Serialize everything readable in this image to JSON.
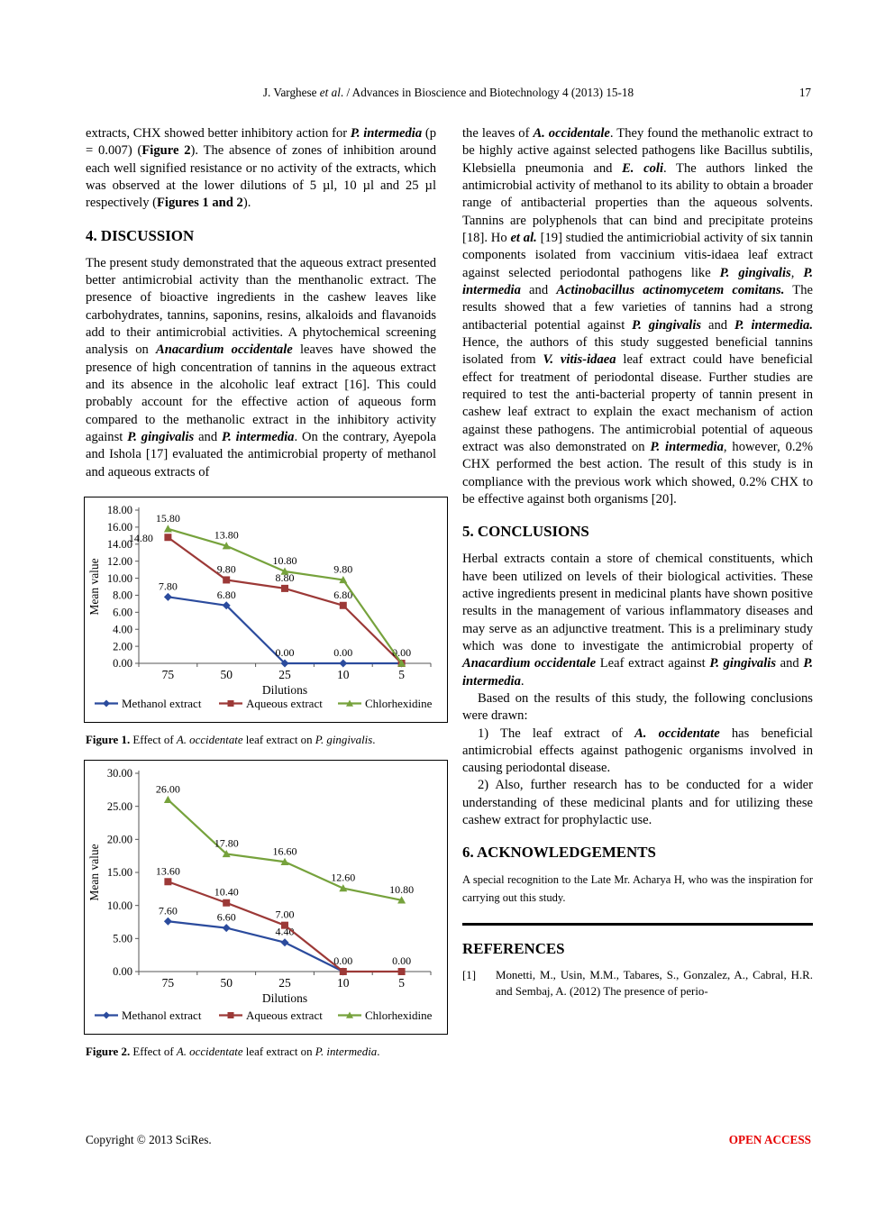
{
  "header": {
    "running_title": [
      {
        "t": "J. Varghese "
      },
      {
        "t": "et al",
        "i": true
      },
      {
        "t": ". / Advances in Bioscience and Biotechnology 4 (2013) 15-18"
      }
    ],
    "page_number": "17"
  },
  "left_column": {
    "para1": [
      {
        "t": "extracts, CHX showed better inhibitory action for "
      },
      {
        "t": "P. intermedia",
        "b": true,
        "i": true
      },
      {
        "t": " (p = 0.007) ("
      },
      {
        "t": "Figure 2",
        "b": true
      },
      {
        "t": "). The absence of zones of inhibition around each well signified resistance or no activity of the extracts, which was observed at the lower dilutions of 5 µl, 10 µl and 25 µl respectively ("
      },
      {
        "t": "Figures 1 and 2",
        "b": true
      },
      {
        "t": ")."
      }
    ],
    "discussion_heading": "4. DISCUSSION",
    "para2": [
      {
        "t": "The present study demonstrated that the aqueous extract presented better antimicrobial activity than the menthanolic extract. The presence of bioactive ingredients in the cashew leaves like carbohydrates, tannins, saponins, resins, alkaloids and flavanoids add to their antimicrobial activities. A phytochemical screening analysis on "
      },
      {
        "t": "Anacardium occidentale",
        "b": true,
        "i": true
      },
      {
        "t": " leaves have showed the presence of high concentration of tannins in the aqueous extract and its absence in the alcoholic leaf extract [16]. This could probably account for the effective action of aqueous form compared to the methanolic extract in the inhibitory activity against "
      },
      {
        "t": "P. gingivalis",
        "b": true,
        "i": true
      },
      {
        "t": " and "
      },
      {
        "t": "P. intermedia",
        "b": true,
        "i": true
      },
      {
        "t": ". On the contrary, Ayepola and Ishola [17] evaluated the antimicrobial property of methanol and aqueous extracts of"
      }
    ],
    "figure1_caption": [
      {
        "t": "Figure 1.",
        "b": true
      },
      {
        "t": " Effect of "
      },
      {
        "t": "A. occidentate",
        "i": true
      },
      {
        "t": " leaf extract on "
      },
      {
        "t": "P. gingivalis",
        "i": true
      },
      {
        "t": "."
      }
    ],
    "figure2_caption": [
      {
        "t": "Figure 2.",
        "b": true
      },
      {
        "t": " Effect of "
      },
      {
        "t": "A. occidentate",
        "i": true
      },
      {
        "t": " leaf extract on "
      },
      {
        "t": "P. intermedia",
        "i": true
      },
      {
        "t": "."
      }
    ]
  },
  "right_column": {
    "para1": [
      {
        "t": "the leaves of "
      },
      {
        "t": "A. occidentale",
        "b": true,
        "i": true
      },
      {
        "t": ". They found the methanolic extract to be highly active against selected pathogens like Bacillus subtilis, Klebsiella pneumonia and "
      },
      {
        "t": "E. coli",
        "b": true,
        "i": true
      },
      {
        "t": ". The authors linked the antimicrobial activity of methanol to its ability to obtain a broader range of antibacterial properties than the aqueous solvents. Tannins are polyphenols that can bind and precipitate proteins [18]. Ho "
      },
      {
        "t": "et al.",
        "b": true,
        "i": true
      },
      {
        "t": " [19] studied the antimicriobial activity of six tannin components isolated from vaccinium vitis-idaea leaf extract against selected periodontal pathogens like "
      },
      {
        "t": "P. gingivalis",
        "b": true,
        "i": true
      },
      {
        "t": ", "
      },
      {
        "t": "P. intermedia",
        "b": true,
        "i": true
      },
      {
        "t": " and "
      },
      {
        "t": "Actinobacillus actinomycetem comitans.",
        "b": true,
        "i": true
      },
      {
        "t": " The results showed that a few varieties of tannins had a strong antibacterial potential against "
      },
      {
        "t": "P. gingivalis",
        "b": true,
        "i": true
      },
      {
        "t": " and "
      },
      {
        "t": "P. intermedia.",
        "b": true,
        "i": true
      },
      {
        "t": " Hence, the authors of this study suggested beneficial tannins isolated from "
      },
      {
        "t": "V. vitis-idaea",
        "b": true,
        "i": true
      },
      {
        "t": " leaf extract could have beneficial effect for treatment of periodontal disease. Further studies are required to test the anti-bacterial property of tannin present in cashew leaf extract to explain the exact mechanism of action against these pathogens. The antimicrobial potential of aqueous extract was also demonstrated on "
      },
      {
        "t": "P. intermedia",
        "b": true,
        "i": true
      },
      {
        "t": ", however, 0.2% CHX performed the best action. The result of this study is in compliance with the previous work which showed, 0.2% CHX to be effective against both organisms [20]."
      }
    ],
    "conclusions_heading": "5. CONCLUSIONS",
    "para2": [
      {
        "t": "Herbal extracts contain a store of chemical constituents, which have been utilized on levels of their biological activities. These active ingredients present in medicinal plants have shown positive results in the management of various inflammatory diseases and may serve as an adjunctive treatment. This is a preliminary study which was done to investigate the antimicrobial property of "
      },
      {
        "t": "Anacardium occidentale",
        "b": true,
        "i": true
      },
      {
        "t": " Leaf extract against "
      },
      {
        "t": "P. gingivalis",
        "b": true,
        "i": true
      },
      {
        "t": " and "
      },
      {
        "t": "P. intermedia",
        "b": true,
        "i": true
      },
      {
        "t": "."
      }
    ],
    "para3": [
      {
        "t": "Based on the results of this study, the following conclusions were drawn:"
      }
    ],
    "para4": [
      {
        "t": "1) The leaf extract of "
      },
      {
        "t": "A. occidentate",
        "b": true,
        "i": true
      },
      {
        "t": " has beneficial antimicrobial effects against pathogenic organisms involved in causing periodontal disease."
      }
    ],
    "para5": [
      {
        "t": "2) Also, further research has to be conducted for a wider understanding of these medicinal plants and for utilizing these cashew extract for prophylactic use."
      }
    ],
    "ack_heading": "6. ACKNOWLEDGEMENTS",
    "ack_text": "A special recognition to the Late Mr. Acharya H, who was the inspiration for carrying out this study.",
    "references_heading": "REFERENCES",
    "references": [
      {
        "num": "[1]",
        "text": "Monetti, M., Usin, M.M., Tabares, S., Gonzalez, A., Cabral, H.R. and Sembaj, A. (2012) The presence of perio-"
      }
    ]
  },
  "footer": {
    "copyright": "Copyright © 2013 SciRes.",
    "open_access": "OPEN ACCESS",
    "open_access_color": "#e60000"
  },
  "chart_data": [
    {
      "type": "line",
      "xlabel": "Dilutions",
      "ylabel": "Mean value",
      "categories": [
        "75",
        "50",
        "25",
        "10",
        "5"
      ],
      "ylim": [
        0,
        18
      ],
      "ytick_step": 2,
      "grid": false,
      "legend_position": "bottom",
      "series": [
        {
          "name": "Methanol extract",
          "color": "#2b4b9d",
          "marker": "diamond",
          "values": [
            7.8,
            6.8,
            0,
            0,
            0
          ],
          "labels": [
            "7.80",
            "6.80",
            "0.00",
            "0.00",
            ""
          ]
        },
        {
          "name": "Aqueous extract",
          "color": "#9c3937",
          "marker": "square",
          "values": [
            14.8,
            9.8,
            8.8,
            6.8,
            0
          ],
          "labels": [
            "14.80",
            "9.80",
            "8.80",
            "6.80",
            "0.00"
          ],
          "label_dx": [
            -30,
            0,
            0,
            0,
            0
          ],
          "label_dy": [
            13,
            0,
            0,
            0,
            0
          ]
        },
        {
          "name": "Chlorhexidine",
          "color": "#76a23c",
          "marker": "triangle",
          "values": [
            15.8,
            13.8,
            10.8,
            9.8,
            0
          ],
          "labels": [
            "15.80",
            "13.80",
            "10.80",
            "9.80",
            ""
          ]
        }
      ]
    },
    {
      "type": "line",
      "xlabel": "Dilutions",
      "ylabel": "Mean value",
      "categories": [
        "75",
        "50",
        "25",
        "10",
        "5"
      ],
      "ylim": [
        0,
        30
      ],
      "ytick_step": 5,
      "grid": false,
      "legend_position": "bottom",
      "series": [
        {
          "name": "Methanol extract",
          "color": "#2b4b9d",
          "marker": "diamond",
          "values": [
            7.6,
            6.6,
            4.4,
            0,
            null
          ],
          "labels": [
            "7.60",
            "6.60",
            "4.40",
            "0.00",
            ""
          ]
        },
        {
          "name": "Aqueous extract",
          "color": "#9c3937",
          "marker": "square",
          "values": [
            13.6,
            10.4,
            7,
            0,
            0
          ],
          "labels": [
            "13.60",
            "10.40",
            "7.00",
            "",
            "0.00"
          ]
        },
        {
          "name": "Chlorhexidine",
          "color": "#76a23c",
          "marker": "triangle",
          "values": [
            26,
            17.8,
            16.6,
            12.6,
            10.8
          ],
          "labels": [
            "26.00",
            "17.80",
            "16.60",
            "12.60",
            "10.80"
          ]
        }
      ]
    }
  ]
}
